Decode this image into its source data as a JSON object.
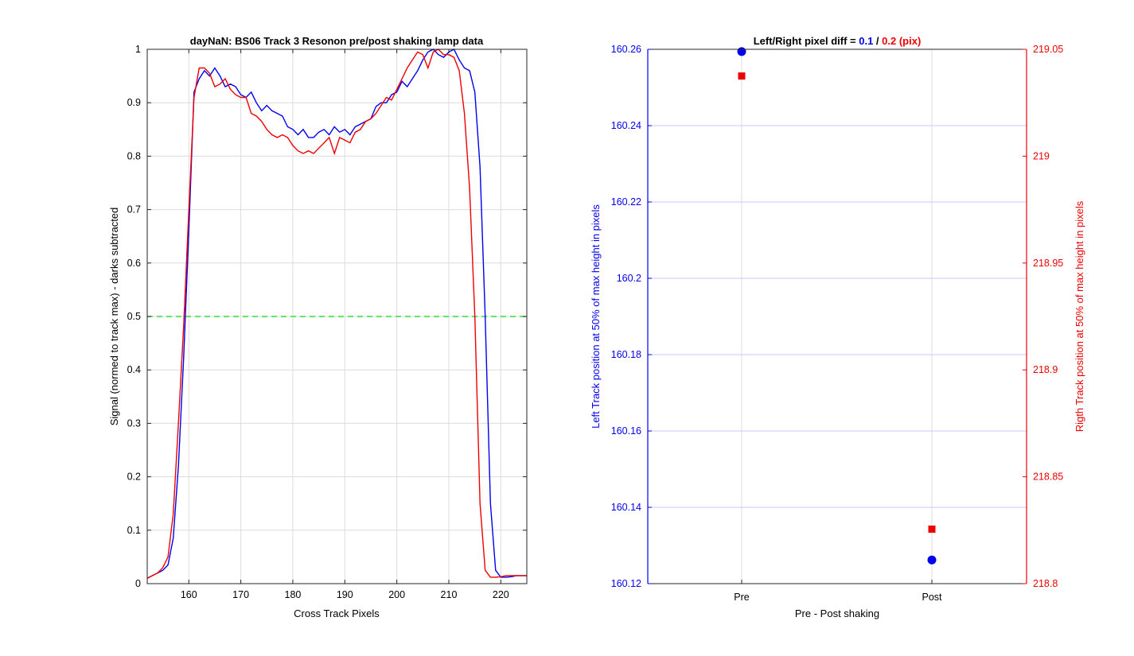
{
  "chart_data": [
    {
      "type": "line",
      "title": "dayNaN: BS06  Track 3 Resonon pre/post shaking lamp data",
      "xlabel": "Cross Track Pixels",
      "ylabel": "Signal (normed to track max) - darks subtracted",
      "xlim": [
        152,
        225
      ],
      "ylim": [
        0,
        1
      ],
      "xticks": [
        160,
        170,
        180,
        190,
        200,
        210,
        220
      ],
      "yticks": [
        0,
        0.1,
        0.2,
        0.3,
        0.4,
        0.5,
        0.6,
        0.7,
        0.8,
        0.9,
        1
      ],
      "grid": true,
      "threshold": {
        "y": 0.5,
        "color": "#33dd33",
        "style": "dashed"
      },
      "series": [
        {
          "color": "#0000ee",
          "x": [
            152,
            153,
            154,
            155,
            156,
            157,
            158,
            159,
            160,
            161,
            162,
            163,
            164,
            165,
            166,
            167,
            168,
            169,
            170,
            171,
            172,
            173,
            174,
            175,
            176,
            177,
            178,
            179,
            180,
            181,
            182,
            183,
            184,
            185,
            186,
            187,
            188,
            189,
            190,
            191,
            192,
            193,
            194,
            195,
            196,
            197,
            198,
            199,
            200,
            201,
            202,
            203,
            204,
            205,
            206,
            207,
            208,
            209,
            210,
            211,
            212,
            213,
            214,
            215,
            216,
            217,
            218,
            219,
            220,
            221,
            222,
            223,
            224,
            225
          ],
          "y": [
            0.01,
            0.015,
            0.02,
            0.025,
            0.035,
            0.085,
            0.22,
            0.42,
            0.66,
            0.92,
            0.945,
            0.96,
            0.95,
            0.965,
            0.95,
            0.93,
            0.935,
            0.93,
            0.915,
            0.91,
            0.92,
            0.9,
            0.885,
            0.895,
            0.885,
            0.88,
            0.875,
            0.855,
            0.85,
            0.84,
            0.85,
            0.835,
            0.835,
            0.845,
            0.85,
            0.84,
            0.855,
            0.845,
            0.85,
            0.84,
            0.855,
            0.86,
            0.865,
            0.87,
            0.893,
            0.9,
            0.9,
            0.915,
            0.92,
            0.94,
            0.93,
            0.945,
            0.96,
            0.98,
            0.995,
            1.0,
            0.99,
            0.985,
            0.995,
            1.0,
            0.98,
            0.965,
            0.96,
            0.92,
            0.78,
            0.5,
            0.15,
            0.025,
            0.012,
            0.012,
            0.013,
            0.015,
            0.015,
            0.015
          ]
        },
        {
          "color": "#ee0000",
          "x": [
            152,
            153,
            154,
            155,
            156,
            157,
            158,
            159,
            160,
            161,
            162,
            163,
            164,
            165,
            166,
            167,
            168,
            169,
            170,
            171,
            172,
            173,
            174,
            175,
            176,
            177,
            178,
            179,
            180,
            181,
            182,
            183,
            184,
            185,
            186,
            187,
            188,
            189,
            190,
            191,
            192,
            193,
            194,
            195,
            196,
            197,
            198,
            199,
            200,
            201,
            202,
            203,
            204,
            205,
            206,
            207,
            208,
            209,
            210,
            211,
            212,
            213,
            214,
            215,
            216,
            217,
            218,
            219,
            220,
            221,
            222,
            223,
            224,
            225
          ],
          "y": [
            0.01,
            0.015,
            0.02,
            0.03,
            0.05,
            0.13,
            0.3,
            0.48,
            0.7,
            0.91,
            0.965,
            0.965,
            0.955,
            0.93,
            0.935,
            0.945,
            0.925,
            0.915,
            0.91,
            0.91,
            0.88,
            0.875,
            0.865,
            0.85,
            0.84,
            0.835,
            0.84,
            0.835,
            0.82,
            0.81,
            0.805,
            0.81,
            0.805,
            0.815,
            0.825,
            0.835,
            0.805,
            0.835,
            0.83,
            0.825,
            0.845,
            0.85,
            0.865,
            0.87,
            0.88,
            0.895,
            0.91,
            0.905,
            0.925,
            0.945,
            0.965,
            0.98,
            0.995,
            0.99,
            0.965,
            0.995,
            1.0,
            0.99,
            0.99,
            0.985,
            0.96,
            0.88,
            0.74,
            0.5,
            0.15,
            0.025,
            0.012,
            0.012,
            0.013,
            0.015,
            0.015,
            0.015,
            0.015,
            0.015
          ]
        }
      ]
    },
    {
      "type": "scatter",
      "title_prefix": "Left/Right pixel diff = ",
      "title_left": "0.1",
      "title_sep": " / ",
      "title_right": "0.2 (pix)",
      "xlabel": "Pre - Post shaking",
      "categories": [
        "Pre",
        "Post"
      ],
      "left_axis": {
        "label": "Left Track position at 50% of max height in pixels",
        "color": "#0000ee",
        "ylim": [
          160.12,
          160.26
        ],
        "ticks": [
          "160.12",
          "160.14",
          "160.16",
          "160.18",
          "160.2",
          "160.22",
          "160.24",
          "160.26"
        ],
        "marker": "circle",
        "values": [
          160.2594,
          160.1262
        ]
      },
      "right_axis": {
        "label": "Rigth Track position at 50% of max height in pixels",
        "color": "#ee0000",
        "ylim": [
          218.8,
          219.05
        ],
        "ticks": [
          "218.8",
          "218.85",
          "218.9",
          "218.95",
          "219",
          "219.05"
        ],
        "marker": "square",
        "values": [
          219.0375,
          218.8255
        ]
      },
      "grid": true
    }
  ]
}
